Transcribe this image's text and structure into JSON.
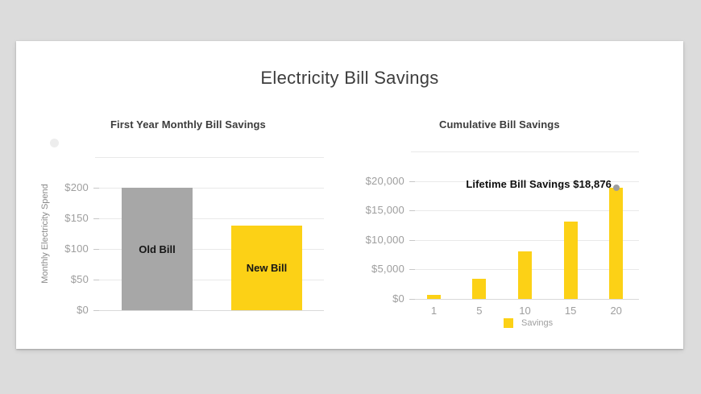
{
  "title": "Electricity Bill Savings",
  "colors": {
    "background": "#DCDCDC",
    "card": "#FFFFFF",
    "savings_yellow": "#FCD116",
    "old_bill_gray": "#A7A7A7",
    "gridline": "#E9E9E9",
    "tick_text": "#9E9E9E",
    "annotation_marker": "#9E9E9E"
  },
  "chart_data": [
    {
      "type": "bar",
      "title": "First Year Monthly Bill Savings",
      "xlabel": "",
      "ylabel": "Monthly Electricity Spend",
      "categories": [
        "Old Bill",
        "New Bill"
      ],
      "values": [
        200,
        138
      ],
      "bar_colors": [
        "#A7A7A7",
        "#FCD116"
      ],
      "ylim": [
        0,
        250
      ],
      "y_tick_step": 50,
      "y_tick_labels": [
        "$0",
        "$50",
        "$100",
        "$150",
        "$200"
      ],
      "grid": true,
      "bar_labels_inside": true,
      "x_labels_visible": false,
      "legend": null,
      "bar_name_prefix": "monthly-bar"
    },
    {
      "type": "bar",
      "title": "Cumulative Bill Savings",
      "xlabel": "",
      "ylabel": "",
      "categories": [
        "1",
        "5",
        "10",
        "15",
        "20"
      ],
      "values": [
        650,
        3400,
        8000,
        13100,
        18876
      ],
      "series": [
        {
          "name": "Savings",
          "values": [
            650,
            3400,
            8000,
            13100,
            18876
          ]
        }
      ],
      "bar_color": "#FCD116",
      "ylim": [
        0,
        25000
      ],
      "y_tick_step": 5000,
      "y_tick_labels": [
        "$0",
        "$5,000",
        "$10,000",
        "$15,000",
        "$20,000"
      ],
      "grid": true,
      "bar_labels_inside": false,
      "x_labels_visible": true,
      "annotation": {
        "text": "Lifetime Bill Savings $18,876",
        "value": 18876,
        "target_category": "20"
      },
      "legend": {
        "label": "Savings",
        "position": "bottom"
      },
      "bar_name_prefix": "savings-bar-year"
    }
  ]
}
